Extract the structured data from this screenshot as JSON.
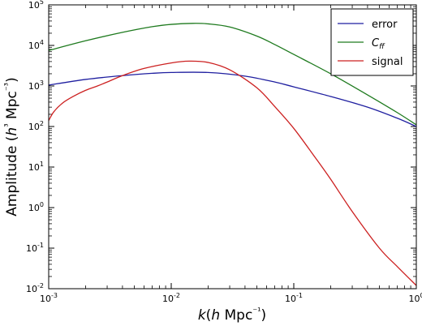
{
  "chart_data": {
    "type": "line",
    "xlabel": "k(h Mpc⁻¹)",
    "ylabel": "Amplitude (h³ Mpc⁻³)",
    "xscale": "log",
    "yscale": "log",
    "xlim": [
      0.001,
      1
    ],
    "ylim": [
      0.01,
      100000
    ],
    "x_ticks": [
      {
        "value": 0.001,
        "base": "10",
        "exp": "-3"
      },
      {
        "value": 0.01,
        "base": "10",
        "exp": "-2"
      },
      {
        "value": 0.1,
        "base": "10",
        "exp": "-1"
      },
      {
        "value": 1,
        "base": "10",
        "exp": "0"
      }
    ],
    "y_ticks": [
      {
        "value": 0.01,
        "base": "10",
        "exp": "-2"
      },
      {
        "value": 0.1,
        "base": "10",
        "exp": "-1"
      },
      {
        "value": 1,
        "base": "10",
        "exp": "0"
      },
      {
        "value": 10,
        "base": "10",
        "exp": "1"
      },
      {
        "value": 100,
        "base": "10",
        "exp": "2"
      },
      {
        "value": 1000,
        "base": "10",
        "exp": "3"
      },
      {
        "value": 10000,
        "base": "10",
        "exp": "4"
      },
      {
        "value": 100000,
        "base": "10",
        "exp": "5"
      }
    ],
    "legend_position": "top-right",
    "grid": false,
    "series": [
      {
        "name": "error",
        "color": "#1f1fa0",
        "x": [
          0.001,
          0.002,
          0.004,
          0.007,
          0.01,
          0.02,
          0.04,
          0.07,
          0.1,
          0.2,
          0.4,
          0.7,
          1.0
        ],
        "y": [
          1050,
          1450,
          1800,
          2050,
          2150,
          2150,
          1750,
          1250,
          950,
          550,
          300,
          160,
          100
        ]
      },
      {
        "name": "C_ff",
        "color": "#1e7a1e",
        "x": [
          0.001,
          0.002,
          0.004,
          0.007,
          0.01,
          0.015,
          0.02,
          0.03,
          0.05,
          0.07,
          0.1,
          0.2,
          0.4,
          0.7,
          1.0
        ],
        "y": [
          7500,
          13000,
          21000,
          29000,
          33000,
          35000,
          34000,
          28500,
          17000,
          10500,
          6000,
          2000,
          600,
          220,
          110
        ]
      },
      {
        "name": "signal",
        "color": "#cc2020",
        "x": [
          0.001,
          0.0011,
          0.0013,
          0.0016,
          0.002,
          0.0025,
          0.003,
          0.004,
          0.006,
          0.01,
          0.014,
          0.02,
          0.03,
          0.05,
          0.07,
          0.1,
          0.15,
          0.2,
          0.3,
          0.5,
          0.7,
          1.0
        ],
        "y": [
          140,
          230,
          380,
          560,
          780,
          1000,
          1250,
          1800,
          2700,
          3700,
          4100,
          3800,
          2500,
          900,
          310,
          90,
          17,
          5,
          0.8,
          0.1,
          0.035,
          0.012
        ]
      }
    ]
  }
}
